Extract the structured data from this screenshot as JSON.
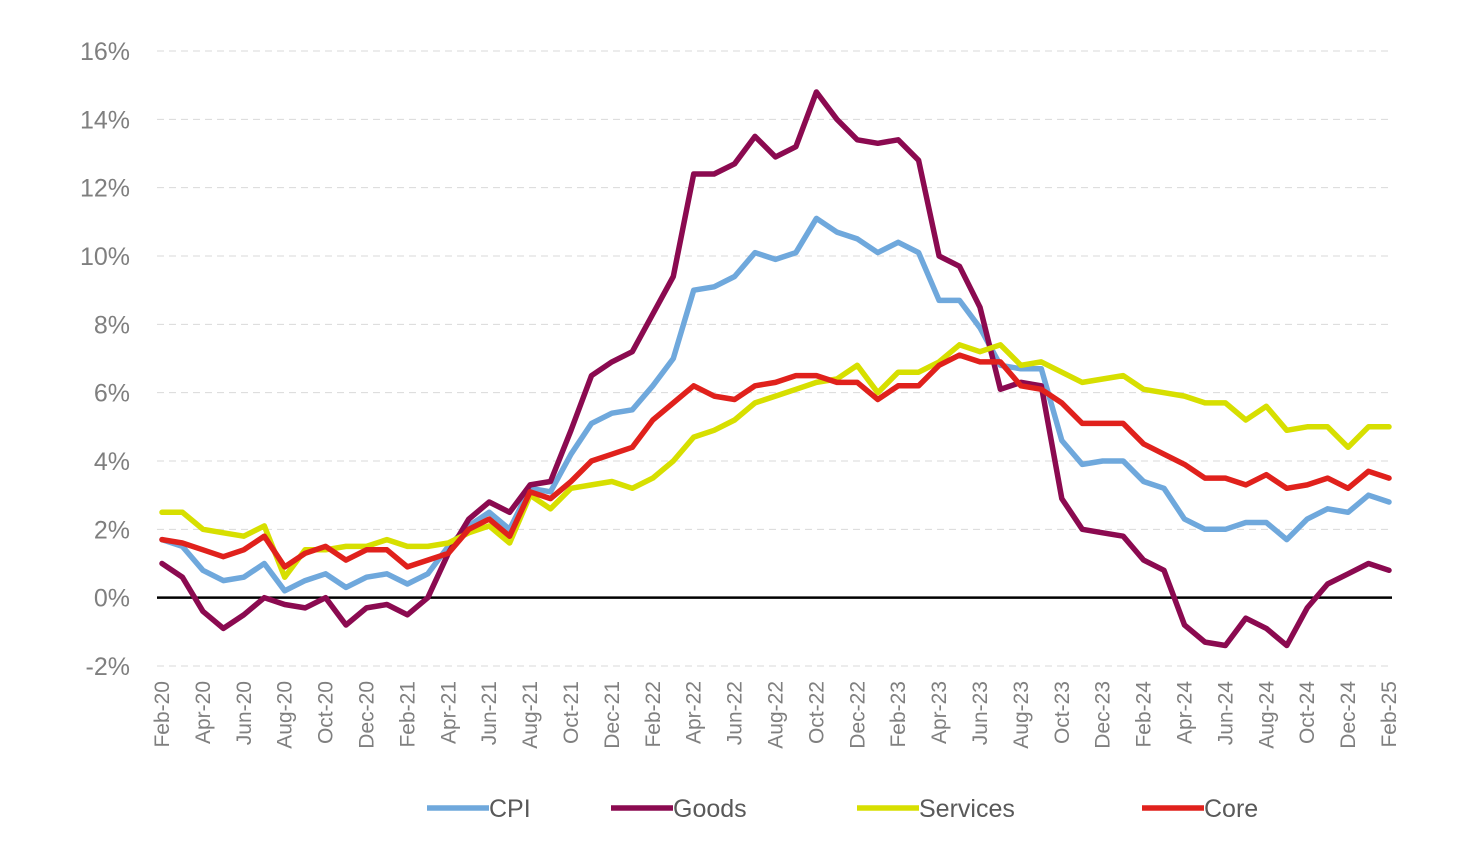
{
  "chart_data": {
    "type": "line",
    "title": "",
    "xlabel": "",
    "ylabel": "",
    "ylim": [
      -2,
      16
    ],
    "y_ticks": [
      -2,
      0,
      2,
      4,
      6,
      8,
      10,
      12,
      14,
      16
    ],
    "y_tick_labels": [
      "-2%",
      "0%",
      "2%",
      "4%",
      "6%",
      "8%",
      "10%",
      "12%",
      "14%",
      "16%"
    ],
    "y_unit": "%",
    "grid": true,
    "legend_position": "bottom",
    "x": [
      "Feb-20",
      "Mar-20",
      "Apr-20",
      "May-20",
      "Jun-20",
      "Jul-20",
      "Aug-20",
      "Sep-20",
      "Oct-20",
      "Nov-20",
      "Dec-20",
      "Jan-21",
      "Feb-21",
      "Mar-21",
      "Apr-21",
      "May-21",
      "Jun-21",
      "Jul-21",
      "Aug-21",
      "Sep-21",
      "Oct-21",
      "Nov-21",
      "Dec-21",
      "Jan-22",
      "Feb-22",
      "Mar-22",
      "Apr-22",
      "May-22",
      "Jun-22",
      "Jul-22",
      "Aug-22",
      "Sep-22",
      "Oct-22",
      "Nov-22",
      "Dec-22",
      "Jan-23",
      "Feb-23",
      "Mar-23",
      "Apr-23",
      "May-23",
      "Jun-23",
      "Jul-23",
      "Aug-23",
      "Sep-23",
      "Oct-23",
      "Nov-23",
      "Dec-23",
      "Jan-24",
      "Feb-24",
      "Mar-24",
      "Apr-24",
      "May-24",
      "Jun-24",
      "Jul-24",
      "Aug-24",
      "Sep-24",
      "Oct-24",
      "Nov-24",
      "Dec-24",
      "Jan-25",
      "Feb-25"
    ],
    "x_tick_labels": [
      "Feb-20",
      "Apr-20",
      "Jun-20",
      "Aug-20",
      "Oct-20",
      "Dec-20",
      "Feb-21",
      "Apr-21",
      "Jun-21",
      "Aug-21",
      "Oct-21",
      "Dec-21",
      "Feb-22",
      "Apr-22",
      "Jun-22",
      "Aug-22",
      "Oct-22",
      "Dec-22",
      "Feb-23",
      "Apr-23",
      "Jun-23",
      "Aug-23",
      "Oct-23",
      "Dec-23",
      "Feb-24",
      "Apr-24",
      "Jun-24",
      "Aug-24",
      "Oct-24",
      "Dec-24",
      "Feb-25"
    ],
    "series": [
      {
        "name": "CPI",
        "color": "#6fa8dc",
        "values": [
          1.7,
          1.5,
          0.8,
          0.5,
          0.6,
          1.0,
          0.2,
          0.5,
          0.7,
          0.3,
          0.6,
          0.7,
          0.4,
          0.7,
          1.5,
          2.1,
          2.5,
          2.0,
          3.2,
          3.1,
          4.2,
          5.1,
          5.4,
          5.5,
          6.2,
          7.0,
          9.0,
          9.1,
          9.4,
          10.1,
          9.9,
          10.1,
          11.1,
          10.7,
          10.5,
          10.1,
          10.4,
          10.1,
          8.7,
          8.7,
          7.9,
          6.8,
          6.7,
          6.7,
          4.6,
          3.9,
          4.0,
          4.0,
          3.4,
          3.2,
          2.3,
          2.0,
          2.0,
          2.2,
          2.2,
          1.7,
          2.3,
          2.6,
          2.5,
          3.0,
          2.8
        ]
      },
      {
        "name": "Goods",
        "color": "#8b0a50",
        "values": [
          1.0,
          0.6,
          -0.4,
          -0.9,
          -0.5,
          0.0,
          -0.2,
          -0.3,
          0.0,
          -0.8,
          -0.3,
          -0.2,
          -0.5,
          0.0,
          1.3,
          2.3,
          2.8,
          2.5,
          3.3,
          3.4,
          4.9,
          6.5,
          6.9,
          7.2,
          8.3,
          9.4,
          12.4,
          12.4,
          12.7,
          13.5,
          12.9,
          13.2,
          14.8,
          14.0,
          13.4,
          13.3,
          13.4,
          12.8,
          10.0,
          9.7,
          8.5,
          6.1,
          6.3,
          6.2,
          2.9,
          2.0,
          1.9,
          1.8,
          1.1,
          0.8,
          -0.8,
          -1.3,
          -1.4,
          -0.6,
          -0.9,
          -1.4,
          -0.3,
          0.4,
          0.7,
          1.0,
          0.8
        ]
      },
      {
        "name": "Services",
        "color": "#d7df00",
        "values": [
          2.5,
          2.5,
          2.0,
          1.9,
          1.8,
          2.1,
          0.6,
          1.4,
          1.4,
          1.5,
          1.5,
          1.7,
          1.5,
          1.5,
          1.6,
          1.9,
          2.1,
          1.6,
          3.0,
          2.6,
          3.2,
          3.3,
          3.4,
          3.2,
          3.5,
          4.0,
          4.7,
          4.9,
          5.2,
          5.7,
          5.9,
          6.1,
          6.3,
          6.4,
          6.8,
          6.0,
          6.6,
          6.6,
          6.9,
          7.4,
          7.2,
          7.4,
          6.8,
          6.9,
          6.6,
          6.3,
          6.4,
          6.5,
          6.1,
          6.0,
          5.9,
          5.7,
          5.7,
          5.2,
          5.6,
          4.9,
          5.0,
          5.0,
          4.4,
          5.0,
          5.0
        ]
      },
      {
        "name": "Core",
        "color": "#e0211c",
        "values": [
          1.7,
          1.6,
          1.4,
          1.2,
          1.4,
          1.8,
          0.9,
          1.3,
          1.5,
          1.1,
          1.4,
          1.4,
          0.9,
          1.1,
          1.3,
          2.0,
          2.3,
          1.8,
          3.1,
          2.9,
          3.4,
          4.0,
          4.2,
          4.4,
          5.2,
          5.7,
          6.2,
          5.9,
          5.8,
          6.2,
          6.3,
          6.5,
          6.5,
          6.3,
          6.3,
          5.8,
          6.2,
          6.2,
          6.8,
          7.1,
          6.9,
          6.9,
          6.2,
          6.1,
          5.7,
          5.1,
          5.1,
          5.1,
          4.5,
          4.2,
          3.9,
          3.5,
          3.5,
          3.3,
          3.6,
          3.2,
          3.3,
          3.5,
          3.2,
          3.7,
          3.5
        ]
      }
    ]
  }
}
